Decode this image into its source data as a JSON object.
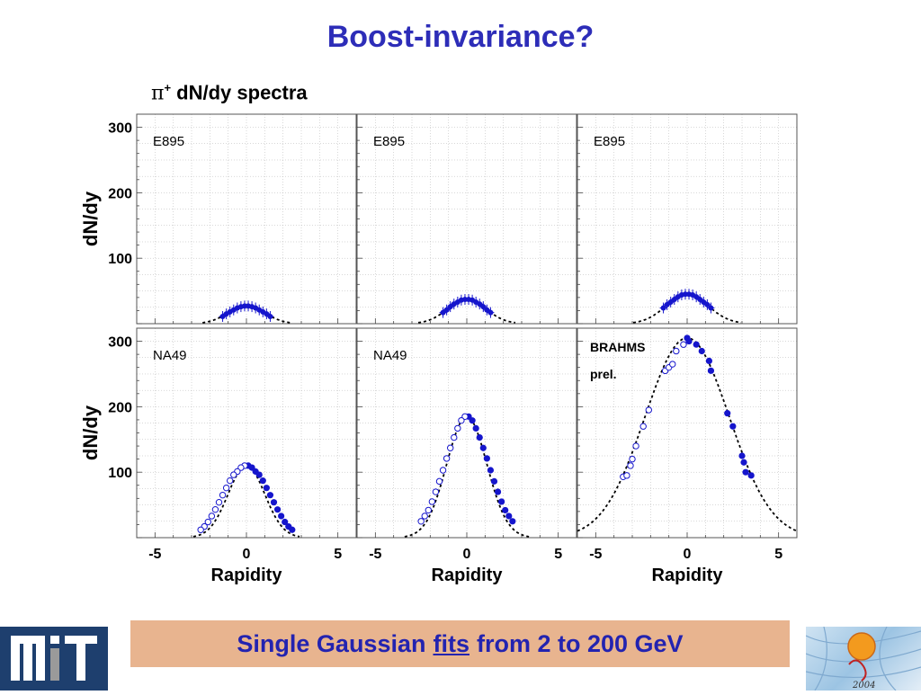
{
  "slide": {
    "title": "Boost-invariance?",
    "subtitle_symbol": "π",
    "subtitle_sup": "+",
    "subtitle_text": " dN/dy spectra",
    "caption_before": "Single Gaussian",
    "caption_link": "fits",
    "caption_after": "from 2 to 200 GeV",
    "logo_right_text": "2004"
  },
  "colors": {
    "title": "#2d2db8",
    "filled_marker": "#1515cc",
    "open_marker": "#1515cc",
    "fit_line": "#000000",
    "caption_bg": "#e8b48f",
    "caption_text": "#2323b0",
    "grid": "#b0b0b0"
  },
  "chart_data": [
    {
      "type": "scatter",
      "panel": "top-left",
      "label": "E895",
      "xlim": [
        -6,
        6
      ],
      "ylim": [
        0,
        320
      ],
      "ylabel": "dN/dy",
      "xlabel": "",
      "yticks": [
        100,
        200,
        300
      ],
      "xticks": [],
      "grid": true,
      "fit": {
        "A": 27,
        "sigma": 1.0
      },
      "series": [
        {
          "style": "filled-errorbar",
          "x": [
            -1.3,
            -1.1,
            -0.9,
            -0.7,
            -0.5,
            -0.3,
            -0.1,
            0.1,
            0.3,
            0.5,
            0.7,
            0.9,
            1.1,
            1.3
          ],
          "y": [
            11,
            15,
            18,
            21,
            24,
            26,
            27,
            27,
            26,
            24,
            21,
            18,
            15,
            11
          ]
        }
      ]
    },
    {
      "type": "scatter",
      "panel": "top-middle",
      "label": "E895",
      "xlim": [
        -6,
        6
      ],
      "ylim": [
        0,
        320
      ],
      "ylabel": "",
      "xlabel": "",
      "yticks": [],
      "xticks": [],
      "grid": true,
      "fit": {
        "A": 37,
        "sigma": 1.05
      },
      "series": [
        {
          "style": "filled-errorbar",
          "x": [
            -1.3,
            -1.1,
            -0.9,
            -0.7,
            -0.5,
            -0.3,
            -0.1,
            0.1,
            0.3,
            0.5,
            0.7,
            0.9,
            1.1,
            1.3
          ],
          "y": [
            17,
            21,
            26,
            30,
            33,
            36,
            37,
            37,
            36,
            33,
            30,
            26,
            21,
            17
          ]
        }
      ]
    },
    {
      "type": "scatter",
      "panel": "top-right",
      "label": "E895",
      "xlim": [
        -6,
        6
      ],
      "ylim": [
        0,
        320
      ],
      "ylabel": "",
      "xlabel": "",
      "yticks": [],
      "xticks": [],
      "grid": true,
      "fit": {
        "A": 45,
        "sigma": 1.15
      },
      "series": [
        {
          "style": "filled-errorbar",
          "x": [
            -1.3,
            -1.1,
            -0.9,
            -0.7,
            -0.5,
            -0.3,
            -0.1,
            0.1,
            0.3,
            0.5,
            0.7,
            0.9,
            1.1,
            1.3
          ],
          "y": [
            24,
            29,
            33,
            37,
            41,
            44,
            45,
            45,
            44,
            41,
            37,
            33,
            29,
            24
          ]
        }
      ]
    },
    {
      "type": "scatter",
      "panel": "bottom-left",
      "label": "NA49",
      "xlim": [
        -6,
        6
      ],
      "ylim": [
        0,
        320
      ],
      "ylabel": "dN/dy",
      "xlabel": "Rapidity",
      "yticks": [
        100,
        200,
        300
      ],
      "xticks": [
        -5,
        0,
        5
      ],
      "grid": true,
      "fit": {
        "A": 110,
        "sigma": 1.0
      },
      "series": [
        {
          "style": "filled",
          "x": [
            0.1,
            0.3,
            0.5,
            0.7,
            0.9,
            1.1,
            1.3,
            1.5,
            1.7,
            1.9,
            2.1,
            2.3,
            2.5
          ],
          "y": [
            110,
            107,
            101,
            96,
            87,
            76,
            65,
            54,
            43,
            33,
            24,
            17,
            12
          ]
        },
        {
          "style": "open",
          "x": [
            -0.1,
            -0.3,
            -0.5,
            -0.7,
            -0.9,
            -1.1,
            -1.3,
            -1.5,
            -1.7,
            -1.9,
            -2.1,
            -2.3,
            -2.5
          ],
          "y": [
            110,
            107,
            101,
            96,
            87,
            76,
            65,
            54,
            43,
            33,
            24,
            17,
            12
          ]
        }
      ]
    },
    {
      "type": "scatter",
      "panel": "bottom-middle",
      "label": "NA49",
      "xlim": [
        -6,
        6
      ],
      "ylim": [
        0,
        320
      ],
      "ylabel": "",
      "xlabel": "Rapidity",
      "yticks": [],
      "xticks": [
        -5,
        0,
        5
      ],
      "grid": true,
      "fit": {
        "A": 185,
        "sigma": 1.1
      },
      "series": [
        {
          "style": "filled",
          "x": [
            0.1,
            0.3,
            0.5,
            0.7,
            0.9,
            1.1,
            1.3,
            1.5,
            1.7,
            1.9,
            2.1,
            2.3,
            2.5
          ],
          "y": [
            185,
            179,
            167,
            153,
            137,
            121,
            103,
            86,
            70,
            55,
            42,
            33,
            25
          ]
        },
        {
          "style": "open",
          "x": [
            -0.1,
            -0.3,
            -0.5,
            -0.7,
            -0.9,
            -1.1,
            -1.3,
            -1.5,
            -1.7,
            -1.9,
            -2.1,
            -2.3,
            -2.5
          ],
          "y": [
            185,
            179,
            167,
            153,
            137,
            121,
            103,
            86,
            70,
            55,
            42,
            33,
            25
          ]
        }
      ]
    },
    {
      "type": "scatter",
      "panel": "bottom-right",
      "labels": [
        "BRAHMS",
        "prel."
      ],
      "xlim": [
        -6,
        6
      ],
      "ylim": [
        0,
        320
      ],
      "ylabel": "",
      "xlabel": "Rapidity",
      "yticks": [],
      "xticks": [
        -5,
        0,
        5
      ],
      "grid": true,
      "fit": {
        "A": 305,
        "sigma": 2.3
      },
      "series": [
        {
          "style": "filled",
          "x": [
            0.0,
            0.1,
            0.5,
            0.8,
            1.2,
            1.3,
            2.2,
            2.5,
            3.0,
            3.1,
            3.2,
            3.5
          ],
          "y": [
            305,
            300,
            295,
            285,
            270,
            255,
            190,
            170,
            125,
            115,
            100,
            95
          ]
        },
        {
          "style": "open",
          "x": [
            -3.5,
            -3.3,
            -3.1,
            -3.0,
            -2.8,
            -2.4,
            -2.1,
            -1.2,
            -1.0,
            -0.8,
            -0.6,
            -0.2
          ],
          "y": [
            93,
            95,
            110,
            120,
            140,
            170,
            195,
            255,
            260,
            265,
            285,
            295
          ]
        }
      ]
    }
  ]
}
